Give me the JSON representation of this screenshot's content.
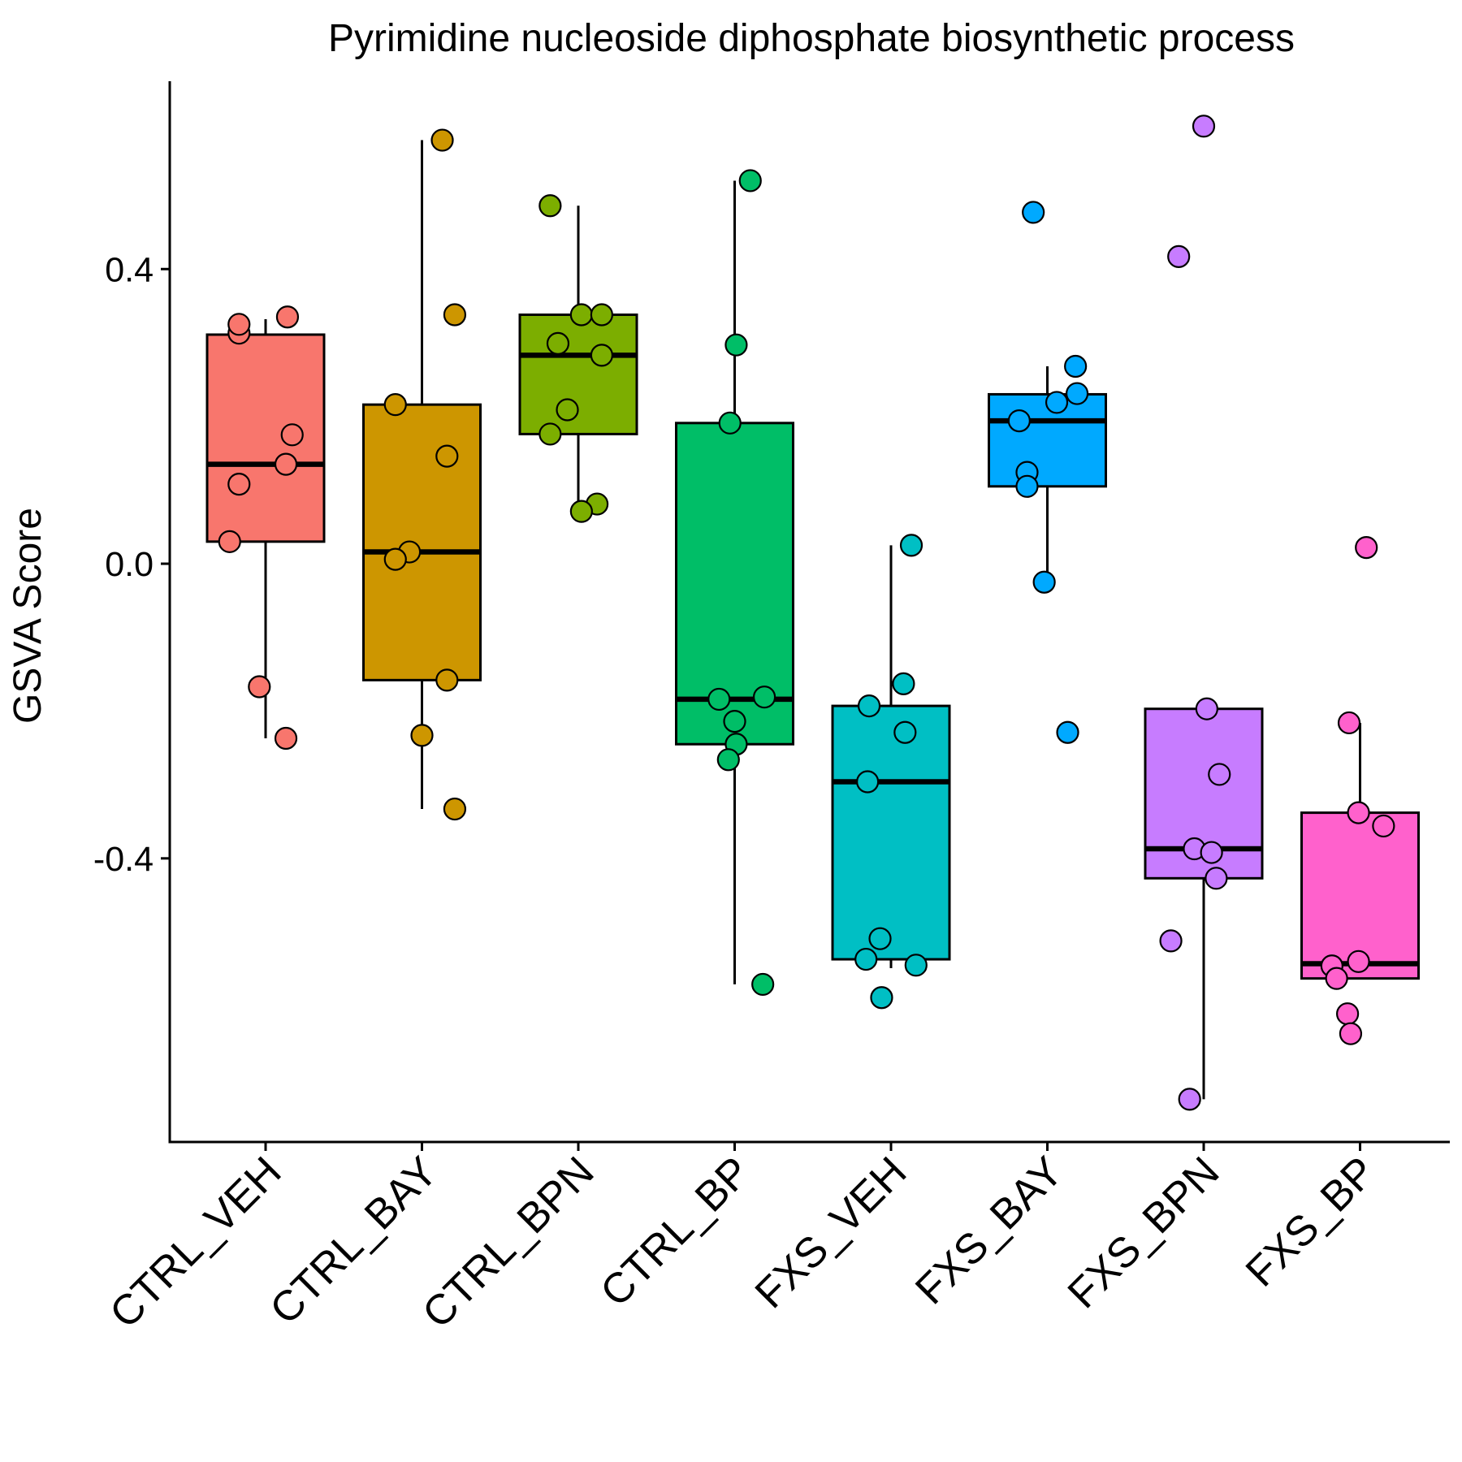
{
  "chart_data": {
    "type": "box",
    "title": "Pyrimidine nucleoside diphosphate biosynthetic process",
    "xlabel": "",
    "ylabel": "GSVA Score",
    "ylim": [
      -0.785,
      0.655
    ],
    "yticks": [
      -0.4,
      0.0,
      0.4
    ],
    "ytick_labels": [
      "-0.4",
      "0.0",
      "0.4"
    ],
    "categories": [
      "CTRL_VEH",
      "CTRL_BAY",
      "CTRL_BPN",
      "CTRL_BP",
      "FXS_VEH",
      "FXS_BAY",
      "FXS_BPN",
      "FXS_BP"
    ],
    "colors": [
      "#F8766D",
      "#CD9600",
      "#7CAE00",
      "#00BE67",
      "#00BFC4",
      "#00A9FF",
      "#C77CFF",
      "#FF61CC"
    ],
    "legend": "none",
    "grid": false,
    "boxes": [
      {
        "name": "CTRL_VEH",
        "q1": 0.03,
        "median": 0.135,
        "q3": 0.311,
        "whisker_low": -0.237,
        "whisker_high": 0.332
      },
      {
        "name": "CTRL_BAY",
        "q1": -0.158,
        "median": 0.016,
        "q3": 0.216,
        "whisker_low": -0.333,
        "whisker_high": 0.575
      },
      {
        "name": "CTRL_BPN",
        "q1": 0.176,
        "median": 0.283,
        "q3": 0.338,
        "whisker_low": 0.081,
        "whisker_high": 0.486
      },
      {
        "name": "CTRL_BP",
        "q1": -0.245,
        "median": -0.184,
        "q3": 0.191,
        "whisker_low": -0.571,
        "whisker_high": 0.52
      },
      {
        "name": "FXS_VEH",
        "q1": -0.537,
        "median": -0.296,
        "q3": -0.193,
        "whisker_low": -0.549,
        "whisker_high": 0.025
      },
      {
        "name": "FXS_BAY",
        "q1": 0.105,
        "median": 0.194,
        "q3": 0.23,
        "whisker_low": -0.025,
        "whisker_high": 0.268
      },
      {
        "name": "FXS_BPN",
        "q1": -0.427,
        "median": -0.387,
        "q3": -0.197,
        "whisker_low": -0.727,
        "whisker_high": -0.197
      },
      {
        "name": "FXS_BP",
        "q1": -0.563,
        "median": -0.543,
        "q3": -0.338,
        "whisker_low": -0.563,
        "whisker_high": -0.216
      }
    ],
    "points": [
      {
        "category": "CTRL_VEH",
        "x_offset": -0.23,
        "values": [
          0.03
        ]
      },
      {
        "category": "CTRL_VEH",
        "x_offset": -0.17,
        "values": [
          0.108
        ]
      },
      {
        "category": "CTRL_VEH",
        "x_offset": -0.17,
        "values": [
          0.313,
          0.325
        ]
      },
      {
        "category": "CTRL_VEH",
        "x_offset": 0.14,
        "values": [
          0.335
        ]
      },
      {
        "category": "CTRL_VEH",
        "x_offset": 0.17,
        "values": [
          0.175
        ]
      },
      {
        "category": "CTRL_VEH",
        "x_offset": 0.13,
        "values": [
          0.135
        ]
      },
      {
        "category": "CTRL_VEH",
        "x_offset": -0.04,
        "values": [
          -0.167
        ]
      },
      {
        "category": "CTRL_VEH",
        "x_offset": 0.13,
        "values": [
          -0.237
        ]
      },
      {
        "category": "CTRL_BAY",
        "x_offset": 0.13,
        "values": [
          0.575
        ]
      },
      {
        "category": "CTRL_BAY",
        "x_offset": 0.21,
        "values": [
          0.338
        ]
      },
      {
        "category": "CTRL_BAY",
        "x_offset": -0.17,
        "values": [
          0.216
        ]
      },
      {
        "category": "CTRL_BAY",
        "x_offset": 0.16,
        "values": [
          0.146
        ]
      },
      {
        "category": "CTRL_BAY",
        "x_offset": -0.08,
        "values": [
          0.016
        ]
      },
      {
        "category": "CTRL_BAY",
        "x_offset": -0.17,
        "values": [
          0.006
        ]
      },
      {
        "category": "CTRL_BAY",
        "x_offset": 0.16,
        "values": [
          -0.158
        ]
      },
      {
        "category": "CTRL_BAY",
        "x_offset": 0.0,
        "values": [
          -0.233
        ]
      },
      {
        "category": "CTRL_BAY",
        "x_offset": 0.21,
        "values": [
          -0.333
        ]
      },
      {
        "category": "CTRL_BPN",
        "x_offset": -0.18,
        "values": [
          0.486
        ]
      },
      {
        "category": "CTRL_BPN",
        "x_offset": 0.02,
        "values": [
          0.338
        ]
      },
      {
        "category": "CTRL_BPN",
        "x_offset": 0.15,
        "values": [
          0.338
        ]
      },
      {
        "category": "CTRL_BPN",
        "x_offset": -0.13,
        "values": [
          0.299
        ]
      },
      {
        "category": "CTRL_BPN",
        "x_offset": 0.15,
        "values": [
          0.283
        ]
      },
      {
        "category": "CTRL_BPN",
        "x_offset": -0.07,
        "values": [
          0.209
        ]
      },
      {
        "category": "CTRL_BPN",
        "x_offset": -0.18,
        "values": [
          0.176
        ]
      },
      {
        "category": "CTRL_BPN",
        "x_offset": 0.12,
        "values": [
          0.081
        ]
      },
      {
        "category": "CTRL_BPN",
        "x_offset": 0.02,
        "values": [
          0.071
        ]
      },
      {
        "category": "CTRL_BP",
        "x_offset": 0.1,
        "values": [
          0.52
        ]
      },
      {
        "category": "CTRL_BP",
        "x_offset": 0.01,
        "values": [
          0.297
        ]
      },
      {
        "category": "CTRL_BP",
        "x_offset": -0.03,
        "values": [
          0.191
        ]
      },
      {
        "category": "CTRL_BP",
        "x_offset": -0.1,
        "values": [
          -0.184
        ]
      },
      {
        "category": "CTRL_BP",
        "x_offset": 0.19,
        "values": [
          -0.181
        ]
      },
      {
        "category": "CTRL_BP",
        "x_offset": 0.0,
        "values": [
          -0.214
        ]
      },
      {
        "category": "CTRL_BP",
        "x_offset": 0.01,
        "values": [
          -0.245
        ]
      },
      {
        "category": "CTRL_BP",
        "x_offset": -0.04,
        "values": [
          -0.266
        ]
      },
      {
        "category": "CTRL_BP",
        "x_offset": 0.18,
        "values": [
          -0.571
        ]
      },
      {
        "category": "FXS_VEH",
        "x_offset": 0.13,
        "values": [
          0.025
        ]
      },
      {
        "category": "FXS_VEH",
        "x_offset": 0.08,
        "values": [
          -0.163
        ]
      },
      {
        "category": "FXS_VEH",
        "x_offset": -0.14,
        "values": [
          -0.193
        ]
      },
      {
        "category": "FXS_VEH",
        "x_offset": 0.09,
        "values": [
          -0.229
        ]
      },
      {
        "category": "FXS_VEH",
        "x_offset": -0.15,
        "values": [
          -0.296
        ]
      },
      {
        "category": "FXS_VEH",
        "x_offset": -0.07,
        "values": [
          -0.509
        ]
      },
      {
        "category": "FXS_VEH",
        "x_offset": -0.16,
        "values": [
          -0.537
        ]
      },
      {
        "category": "FXS_VEH",
        "x_offset": 0.16,
        "values": [
          -0.545
        ]
      },
      {
        "category": "FXS_VEH",
        "x_offset": -0.06,
        "values": [
          -0.589
        ]
      },
      {
        "category": "FXS_BAY",
        "x_offset": -0.09,
        "values": [
          0.477
        ]
      },
      {
        "category": "FXS_BAY",
        "x_offset": 0.18,
        "values": [
          0.268
        ]
      },
      {
        "category": "FXS_BAY",
        "x_offset": 0.19,
        "values": [
          0.231
        ]
      },
      {
        "category": "FXS_BAY",
        "x_offset": 0.06,
        "values": [
          0.219
        ]
      },
      {
        "category": "FXS_BAY",
        "x_offset": -0.18,
        "values": [
          0.194
        ]
      },
      {
        "category": "FXS_BAY",
        "x_offset": -0.13,
        "values": [
          0.124
        ]
      },
      {
        "category": "FXS_BAY",
        "x_offset": -0.13,
        "values": [
          0.105
        ]
      },
      {
        "category": "FXS_BAY",
        "x_offset": -0.02,
        "values": [
          -0.025
        ]
      },
      {
        "category": "FXS_BAY",
        "x_offset": 0.13,
        "values": [
          -0.229
        ]
      },
      {
        "category": "FXS_BPN",
        "x_offset": 0.0,
        "values": [
          0.594
        ]
      },
      {
        "category": "FXS_BPN",
        "x_offset": -0.16,
        "values": [
          0.417
        ]
      },
      {
        "category": "FXS_BPN",
        "x_offset": 0.02,
        "values": [
          -0.197
        ]
      },
      {
        "category": "FXS_BPN",
        "x_offset": 0.1,
        "values": [
          -0.286
        ]
      },
      {
        "category": "FXS_BPN",
        "x_offset": -0.06,
        "values": [
          -0.387
        ]
      },
      {
        "category": "FXS_BPN",
        "x_offset": 0.05,
        "values": [
          -0.392
        ]
      },
      {
        "category": "FXS_BPN",
        "x_offset": 0.08,
        "values": [
          -0.427
        ]
      },
      {
        "category": "FXS_BPN",
        "x_offset": -0.21,
        "values": [
          -0.512
        ]
      },
      {
        "category": "FXS_BPN",
        "x_offset": -0.09,
        "values": [
          -0.727
        ]
      },
      {
        "category": "FXS_BP",
        "x_offset": 0.04,
        "values": [
          0.022
        ]
      },
      {
        "category": "FXS_BP",
        "x_offset": -0.07,
        "values": [
          -0.216
        ]
      },
      {
        "category": "FXS_BP",
        "x_offset": -0.01,
        "values": [
          -0.338
        ]
      },
      {
        "category": "FXS_BP",
        "x_offset": 0.15,
        "values": [
          -0.356
        ]
      },
      {
        "category": "FXS_BP",
        "x_offset": -0.01,
        "values": [
          -0.54
        ]
      },
      {
        "category": "FXS_BP",
        "x_offset": -0.18,
        "values": [
          -0.546
        ]
      },
      {
        "category": "FXS_BP",
        "x_offset": -0.15,
        "values": [
          -0.563
        ]
      },
      {
        "category": "FXS_BP",
        "x_offset": -0.08,
        "values": [
          -0.611
        ]
      },
      {
        "category": "FXS_BP",
        "x_offset": -0.06,
        "values": [
          -0.638
        ]
      }
    ]
  }
}
